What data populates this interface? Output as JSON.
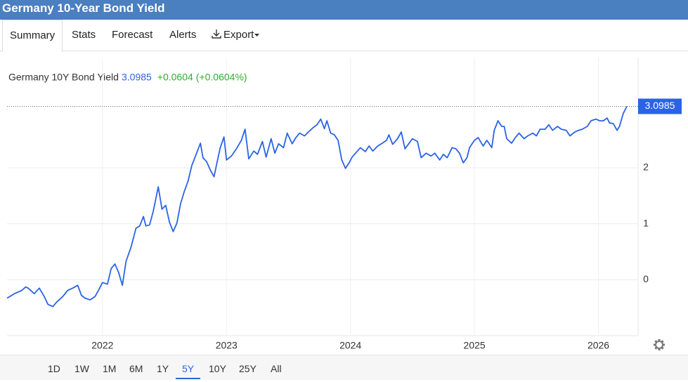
{
  "header": {
    "title": "Germany 10-Year Bond Yield"
  },
  "tabs": [
    "Summary",
    "Stats",
    "Forecast",
    "Alerts",
    "Export"
  ],
  "active_tab": 0,
  "legend": {
    "change": "+0.0604",
    "change_pct": "(+0.0604%)"
  },
  "ranges": [
    "1D",
    "1W",
    "1M",
    "6M",
    "1Y",
    "5Y",
    "10Y",
    "25Y",
    "All"
  ],
  "active_range": 5,
  "chart_data": {
    "type": "line",
    "xlim": [
      2021.23,
      2026.32
    ],
    "xticks": [
      2022,
      2023,
      2024,
      2025,
      2026
    ],
    "ylim": [
      -1,
      3.97
    ],
    "yticks": [
      0,
      1,
      2
    ],
    "grid": true,
    "x": [
      2021.23,
      2021.29,
      2021.35,
      2021.38,
      2021.4,
      2021.45,
      2021.49,
      2021.53,
      2021.56,
      2021.6,
      2021.63,
      2021.68,
      2021.72,
      2021.76,
      2021.8,
      2021.83,
      2021.86,
      2021.9,
      2021.94,
      2021.97,
      2022.0,
      2022.04,
      2022.07,
      2022.1,
      2022.13,
      2022.16,
      2022.19,
      2022.23,
      2022.27,
      2022.3,
      2022.33,
      2022.35,
      2022.38,
      2022.41,
      2022.45,
      2022.48,
      2022.51,
      2022.54,
      2022.57,
      2022.6,
      2022.63,
      2022.66,
      2022.69,
      2022.72,
      2022.75,
      2022.79,
      2022.81,
      2022.84,
      2022.87,
      2022.9,
      2022.92,
      2022.95,
      2022.98,
      2023.0,
      2023.04,
      2023.08,
      2023.12,
      2023.15,
      2023.18,
      2023.22,
      2023.25,
      2023.29,
      2023.32,
      2023.36,
      2023.39,
      2023.42,
      2023.46,
      2023.49,
      2023.53,
      2023.56,
      2023.59,
      2023.63,
      2023.66,
      2023.7,
      2023.73,
      2023.76,
      2023.79,
      2023.81,
      2023.84,
      2023.87,
      2023.9,
      2023.93,
      2023.96,
      2023.99,
      2024.01,
      2024.04,
      2024.08,
      2024.12,
      2024.15,
      2024.18,
      2024.22,
      2024.25,
      2024.29,
      2024.31,
      2024.34,
      2024.38,
      2024.41,
      2024.44,
      2024.47,
      2024.5,
      2024.54,
      2024.57,
      2024.61,
      2024.65,
      2024.68,
      2024.72,
      2024.75,
      2024.78,
      2024.82,
      2024.85,
      2024.88,
      2024.91,
      2024.94,
      2024.96,
      2025.0,
      2025.03,
      2025.07,
      2025.1,
      2025.14,
      2025.16,
      2025.19,
      2025.22,
      2025.24,
      2025.26,
      2025.3,
      2025.33,
      2025.36,
      2025.4,
      2025.43,
      2025.47,
      2025.5,
      2025.53,
      2025.57,
      2025.6,
      2025.63,
      2025.67,
      2025.7,
      2025.74,
      2025.77,
      2025.81,
      2025.84,
      2025.87,
      2025.91,
      2025.94,
      2025.98,
      2026.01,
      2026.04,
      2026.07,
      2026.09,
      2026.12,
      2026.15,
      2026.17,
      2026.2,
      2026.23
    ],
    "series": [
      {
        "name": "Germany 10Y Bond Yield",
        "color": "#2a63e8",
        "values": [
          -0.33,
          -0.25,
          -0.19,
          -0.13,
          -0.15,
          -0.25,
          -0.15,
          -0.3,
          -0.44,
          -0.48,
          -0.4,
          -0.3,
          -0.19,
          -0.15,
          -0.1,
          -0.28,
          -0.33,
          -0.36,
          -0.3,
          -0.18,
          -0.05,
          -0.08,
          0.2,
          0.28,
          0.13,
          -0.1,
          0.33,
          0.58,
          0.92,
          0.96,
          1.13,
          0.96,
          0.98,
          1.23,
          1.66,
          1.26,
          1.33,
          1.03,
          0.86,
          1.01,
          1.36,
          1.58,
          1.76,
          2.04,
          2.21,
          2.44,
          2.18,
          2.11,
          1.96,
          1.84,
          2.06,
          2.36,
          2.55,
          2.14,
          2.21,
          2.34,
          2.49,
          2.69,
          2.16,
          2.3,
          2.24,
          2.47,
          2.19,
          2.52,
          2.26,
          2.43,
          2.36,
          2.62,
          2.43,
          2.54,
          2.62,
          2.57,
          2.64,
          2.72,
          2.77,
          2.87,
          2.7,
          2.84,
          2.62,
          2.59,
          2.49,
          2.14,
          1.99,
          2.09,
          2.18,
          2.26,
          2.36,
          2.29,
          2.39,
          2.3,
          2.39,
          2.43,
          2.49,
          2.59,
          2.42,
          2.52,
          2.64,
          2.34,
          2.43,
          2.52,
          2.47,
          2.18,
          2.26,
          2.21,
          2.26,
          2.14,
          2.24,
          2.18,
          2.36,
          2.34,
          2.26,
          2.09,
          2.18,
          2.36,
          2.49,
          2.54,
          2.39,
          2.49,
          2.36,
          2.67,
          2.84,
          2.74,
          2.74,
          2.52,
          2.44,
          2.54,
          2.62,
          2.52,
          2.57,
          2.62,
          2.57,
          2.69,
          2.69,
          2.77,
          2.67,
          2.74,
          2.69,
          2.67,
          2.57,
          2.64,
          2.67,
          2.69,
          2.74,
          2.84,
          2.87,
          2.84,
          2.84,
          2.89,
          2.8,
          2.79,
          2.67,
          2.74,
          2.97,
          3.0985
        ]
      }
    ]
  }
}
